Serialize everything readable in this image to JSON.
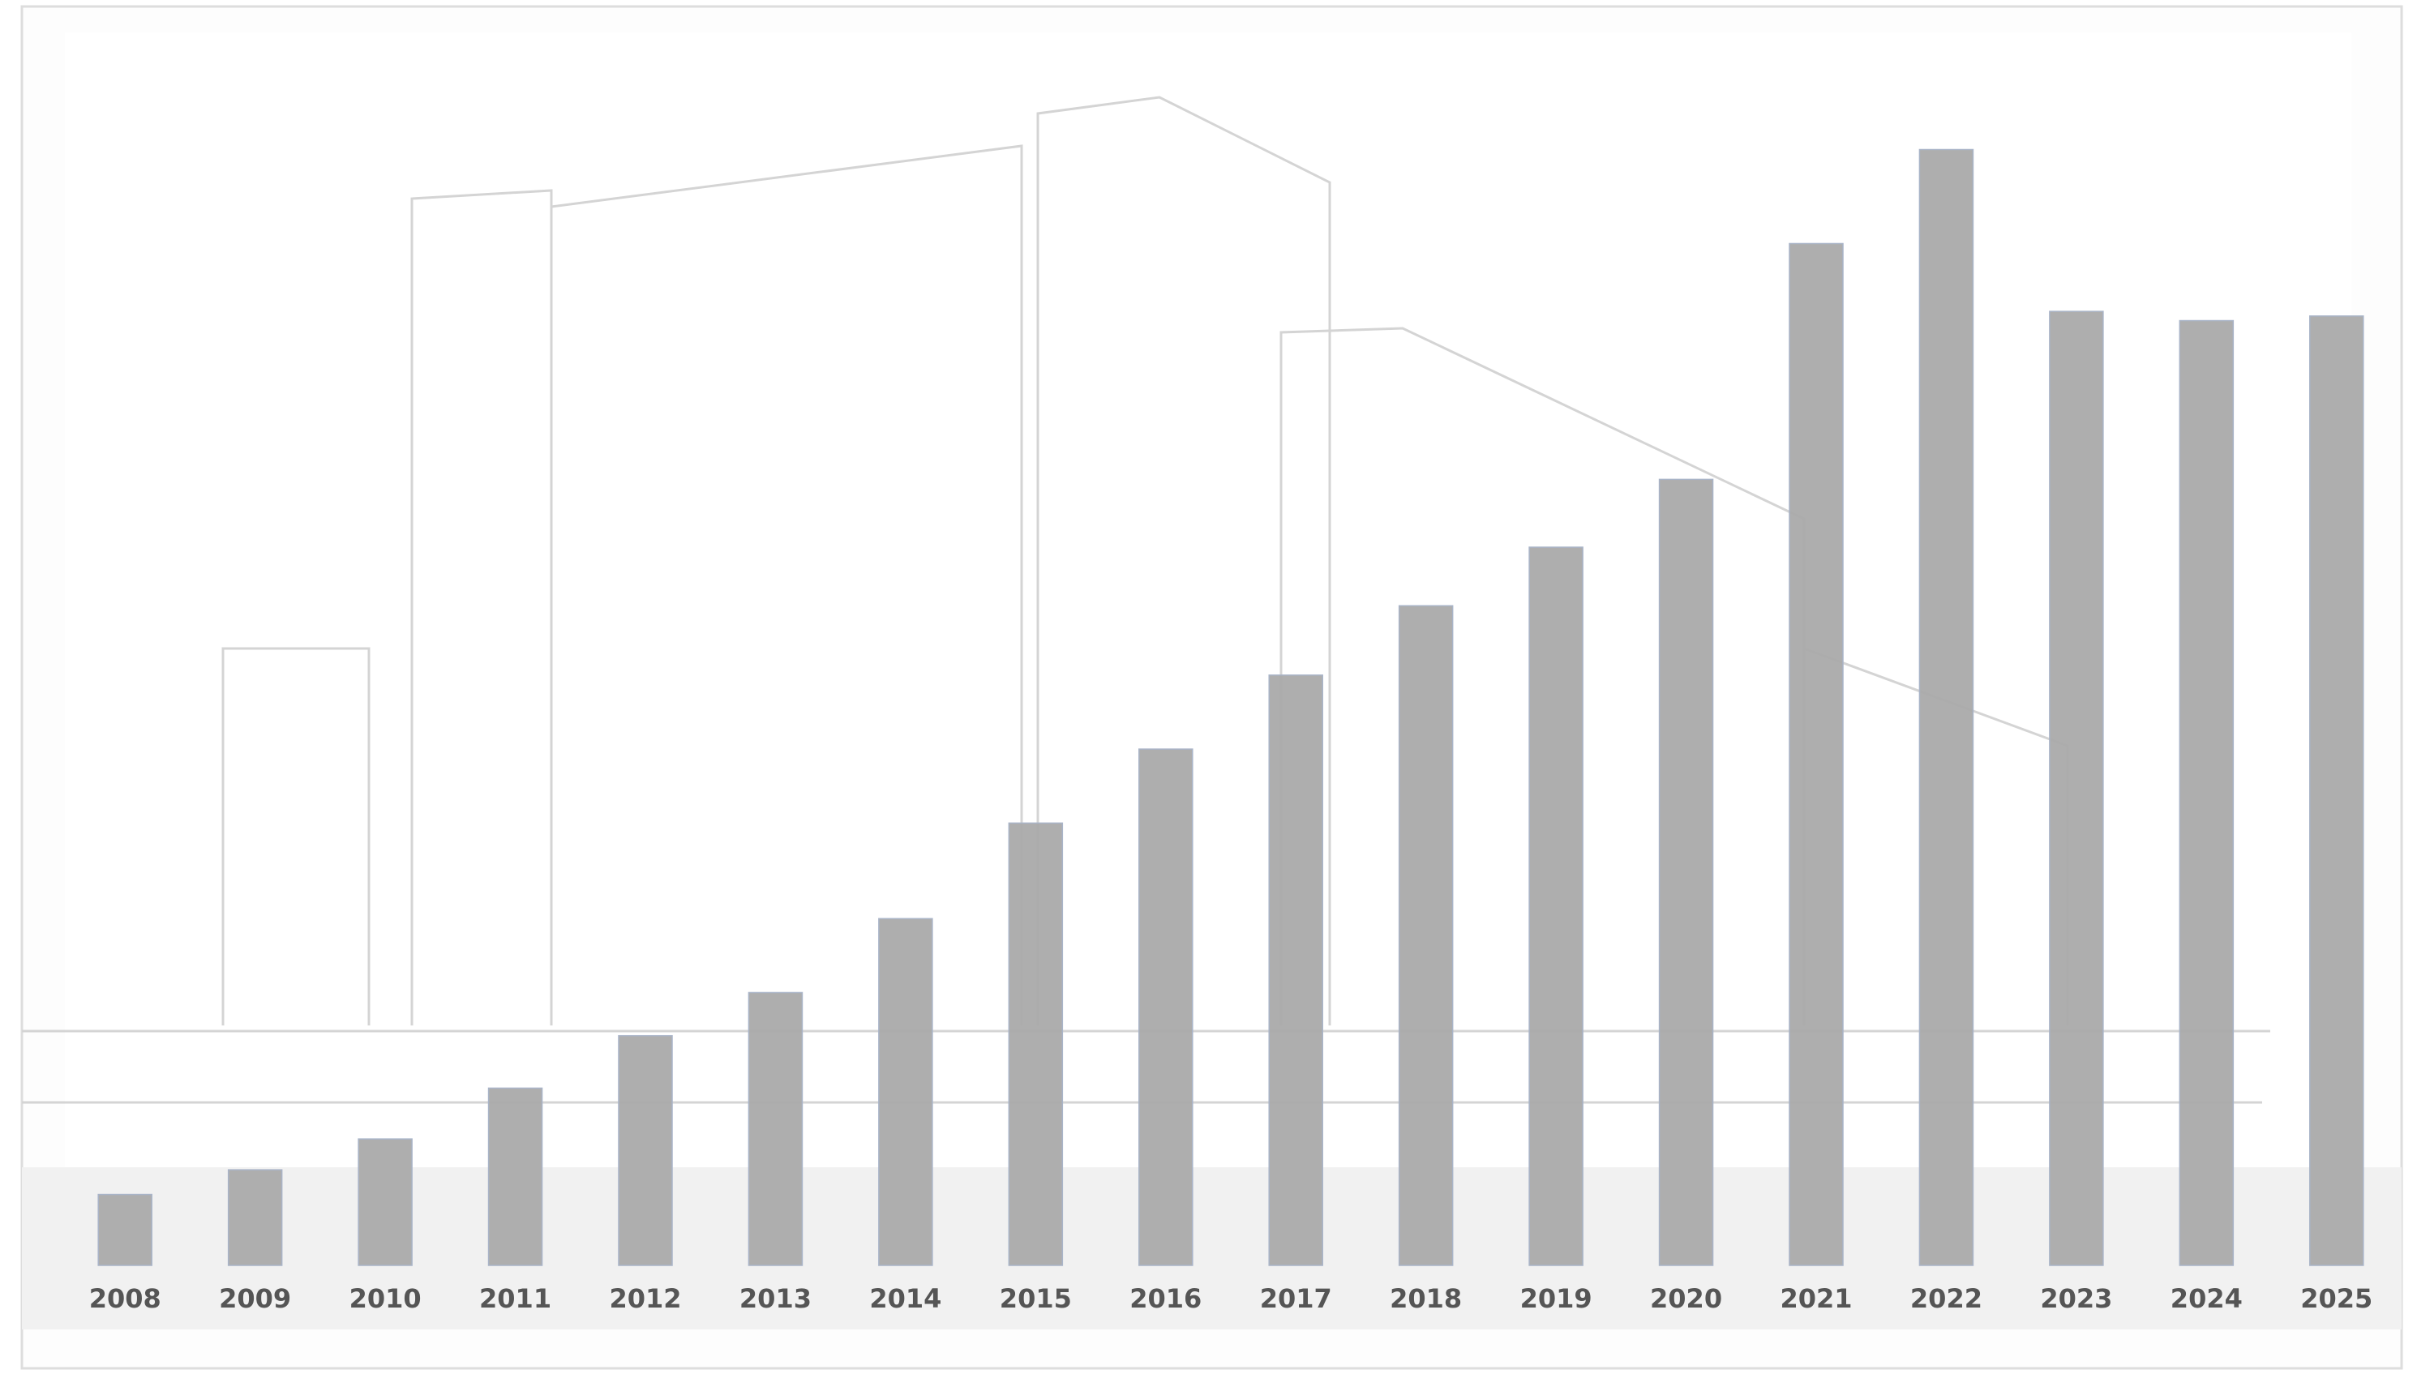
{
  "chart_data": {
    "type": "bar",
    "categories": [
      "2008",
      "2009",
      "2010",
      "2011",
      "2012",
      "2013",
      "2014",
      "2015",
      "2016",
      "2017",
      "2018",
      "2019",
      "2020",
      "2021",
      "2022",
      "2023",
      "2024",
      "2025"
    ],
    "values": [
      46,
      62,
      82,
      115,
      149,
      177,
      225,
      287,
      335,
      383,
      428,
      466,
      510,
      663,
      724,
      619,
      613,
      616
    ],
    "color": "#aaaaaa",
    "ylim": [
      0,
      800
    ]
  }
}
